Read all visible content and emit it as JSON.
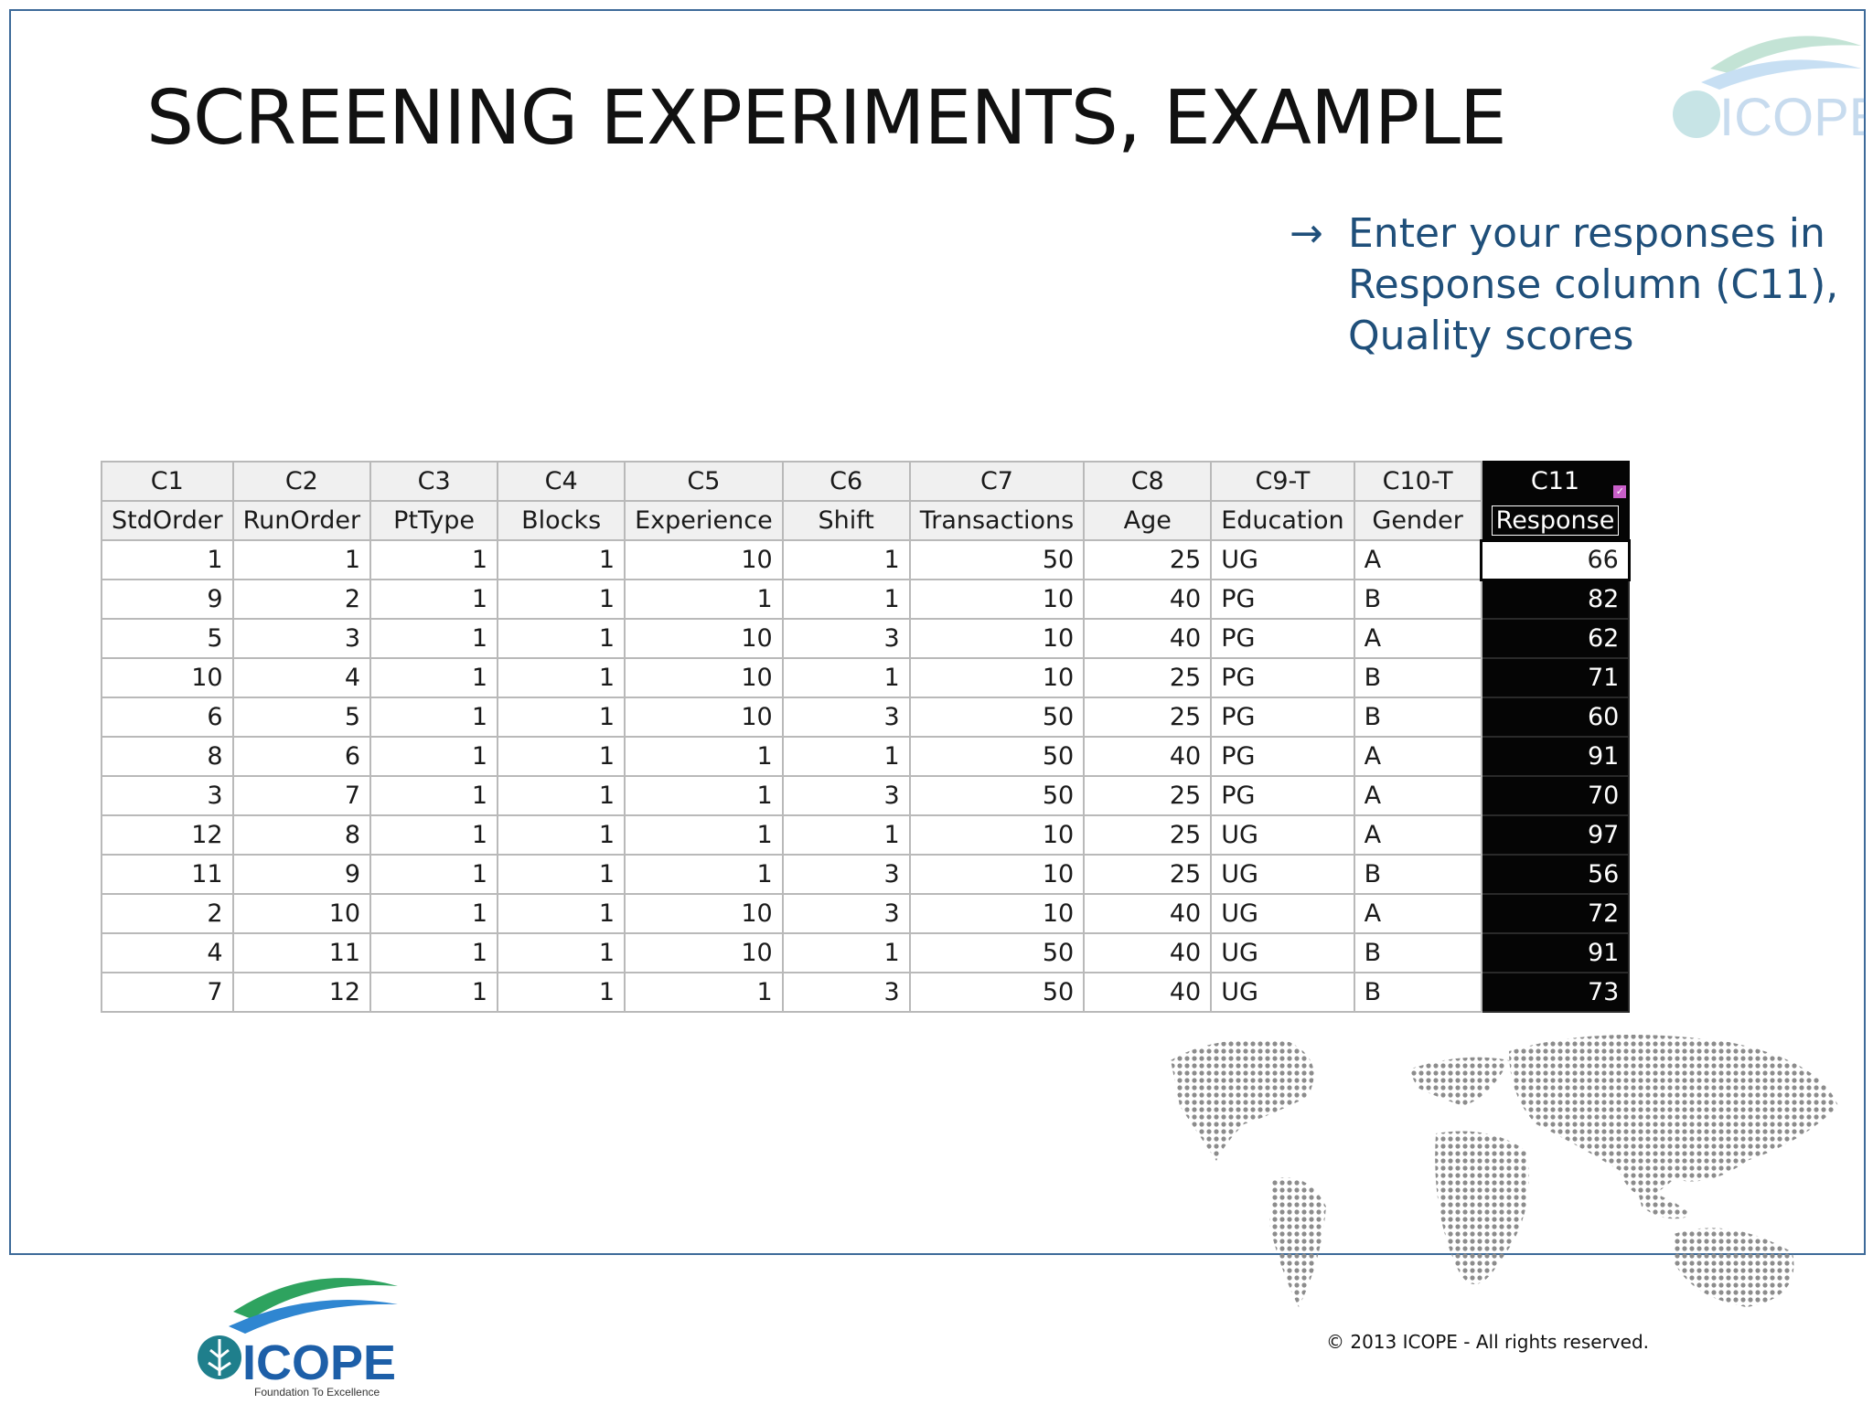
{
  "slide": {
    "title": "SCREENING EXPERIMENTS, EXAMPLE",
    "bullet_text": "Enter your responses in Response column (C11), Quality scores",
    "copyright": "©  2013 ICOPE - All rights reserved.",
    "logo_text": "ICOPE",
    "logo_tagline": "Foundation To Excellence",
    "accent_color": "#1f4f7a",
    "frame_color": "#3d6a99"
  },
  "worksheet": {
    "column_ids": [
      "C1",
      "C2",
      "C3",
      "C4",
      "C5",
      "C6",
      "C7",
      "C8",
      "C9-T",
      "C10-T",
      "C11"
    ],
    "column_names": [
      "StdOrder",
      "RunOrder",
      "PtType",
      "Blocks",
      "Experience",
      "Shift",
      "Transactions",
      "Age",
      "Education",
      "Gender",
      "Response"
    ],
    "rows": [
      [
        "1",
        "1",
        "1",
        "1",
        "10",
        "1",
        "50",
        "25",
        "UG",
        "A",
        "66"
      ],
      [
        "9",
        "2",
        "1",
        "1",
        "1",
        "1",
        "10",
        "40",
        "PG",
        "B",
        "82"
      ],
      [
        "5",
        "3",
        "1",
        "1",
        "10",
        "3",
        "10",
        "40",
        "PG",
        "A",
        "62"
      ],
      [
        "10",
        "4",
        "1",
        "1",
        "10",
        "1",
        "10",
        "25",
        "PG",
        "B",
        "71"
      ],
      [
        "6",
        "5",
        "1",
        "1",
        "10",
        "3",
        "50",
        "25",
        "PG",
        "B",
        "60"
      ],
      [
        "8",
        "6",
        "1",
        "1",
        "1",
        "1",
        "50",
        "40",
        "PG",
        "A",
        "91"
      ],
      [
        "3",
        "7",
        "1",
        "1",
        "1",
        "3",
        "50",
        "25",
        "PG",
        "A",
        "70"
      ],
      [
        "12",
        "8",
        "1",
        "1",
        "1",
        "1",
        "10",
        "25",
        "UG",
        "A",
        "97"
      ],
      [
        "11",
        "9",
        "1",
        "1",
        "1",
        "3",
        "10",
        "25",
        "UG",
        "B",
        "56"
      ],
      [
        "2",
        "10",
        "1",
        "1",
        "10",
        "3",
        "10",
        "40",
        "UG",
        "A",
        "72"
      ],
      [
        "4",
        "11",
        "1",
        "1",
        "10",
        "1",
        "50",
        "40",
        "UG",
        "B",
        "91"
      ],
      [
        "7",
        "12",
        "1",
        "1",
        "1",
        "3",
        "50",
        "40",
        "UG",
        "B",
        "73"
      ]
    ]
  }
}
